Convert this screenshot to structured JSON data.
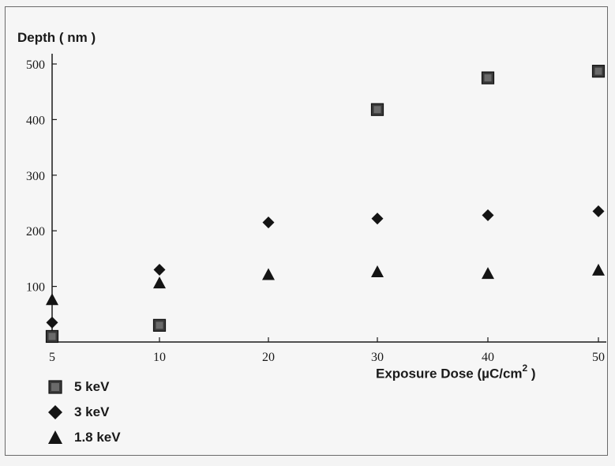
{
  "chart_data": {
    "type": "scatter",
    "ylabel": "Depth ( nm )",
    "xlabel_main": "Exposure Dose (µC/cm",
    "xlabel_sup": "2",
    "xlabel_close": " )",
    "x_ticks": [
      "5",
      "10",
      "20",
      "30",
      "40",
      "50"
    ],
    "y_ticks": [
      "100",
      "200",
      "300",
      "400",
      "500"
    ],
    "x_tick_values": [
      5,
      10,
      20,
      30,
      40,
      50
    ],
    "y_tick_values": [
      100,
      200,
      300,
      400,
      500
    ],
    "series": [
      {
        "name": "5 keV",
        "marker": "square",
        "color": "#2b2b2b",
        "points": [
          [
            5,
            10
          ],
          [
            10,
            30
          ],
          [
            30,
            418
          ],
          [
            40,
            475
          ],
          [
            50,
            487
          ]
        ]
      },
      {
        "name": "3 keV",
        "marker": "diamond",
        "color": "#141414",
        "points": [
          [
            5,
            35
          ],
          [
            10,
            130
          ],
          [
            20,
            215
          ],
          [
            30,
            222
          ],
          [
            40,
            228
          ],
          [
            50,
            235
          ]
        ]
      },
      {
        "name": "1.8 keV",
        "marker": "triangle",
        "color": "#141414",
        "points": [
          [
            5,
            75
          ],
          [
            10,
            105
          ],
          [
            20,
            120
          ],
          [
            30,
            125
          ],
          [
            40,
            122
          ],
          [
            50,
            128
          ]
        ]
      }
    ],
    "grid": false,
    "legend_position": "bottom-left"
  }
}
